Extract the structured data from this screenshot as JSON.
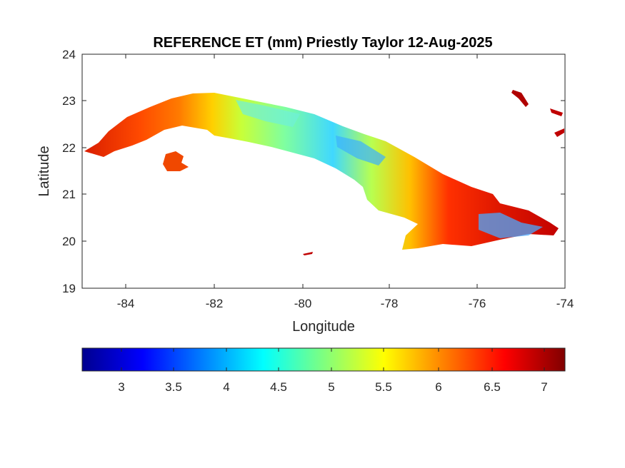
{
  "map": {
    "title": "REFERENCE ET (mm) Priestly Taylor 12-Aug-2025",
    "xlabel": "Longitude",
    "ylabel": "Latitude",
    "xlim": [
      -85,
      -74
    ],
    "ylim": [
      19,
      24
    ],
    "x_ticks": [
      "-84",
      "-82",
      "-80",
      "-78",
      "-76",
      "-74"
    ],
    "y_ticks": [
      "19",
      "20",
      "21",
      "22",
      "23",
      "24"
    ],
    "colormap": "jet",
    "colorbar": {
      "range": [
        2.6,
        7.2
      ],
      "ticks": [
        "3",
        "3.5",
        "4",
        "4.5",
        "5",
        "5.5",
        "6",
        "6.5",
        "7"
      ]
    },
    "colors": {
      "low": "#00008f",
      "mid": "#7fff7f",
      "high": "#800000"
    }
  }
}
